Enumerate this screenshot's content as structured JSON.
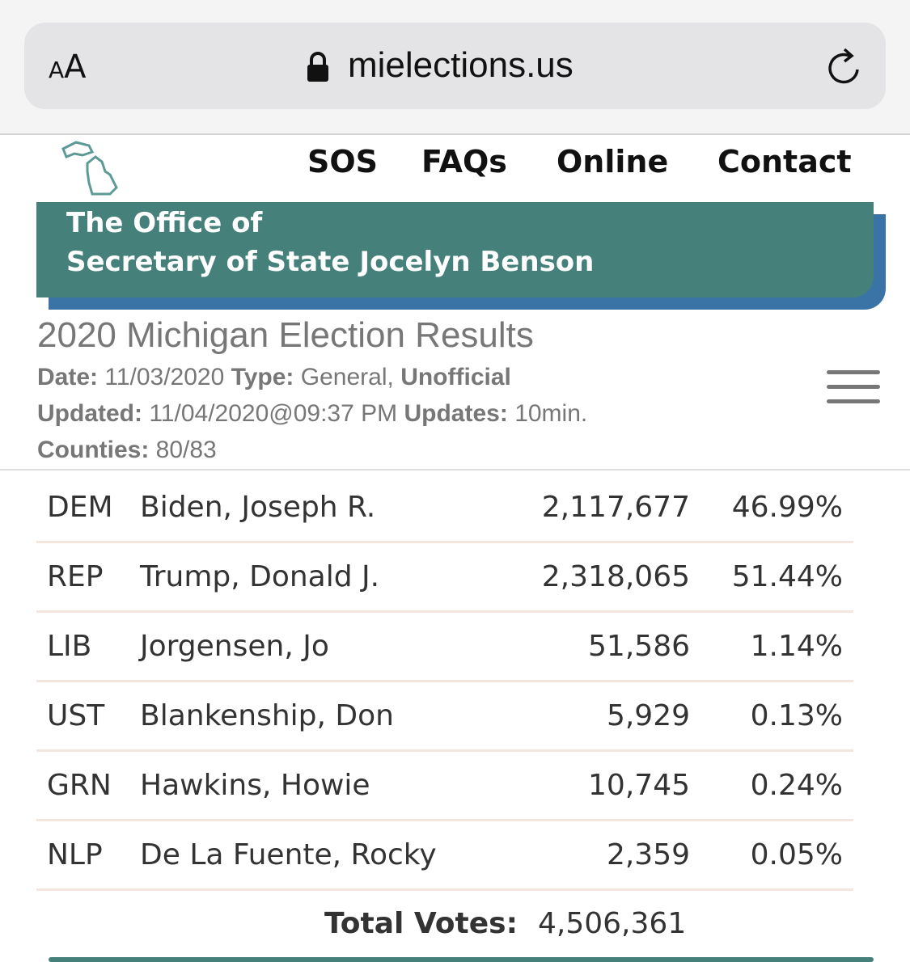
{
  "browser": {
    "text_size": "AA",
    "url": "mielections.us"
  },
  "nav": [
    "SOS",
    "FAQs",
    "Online",
    "Contact"
  ],
  "banner": {
    "line1": "The Office of",
    "line2": "Secretary of State Jocelyn Benson"
  },
  "title": "2020 Michigan Election Results",
  "meta": [
    [
      {
        "text": "Date:",
        "bold": true
      },
      {
        "text": "11/03/2020",
        "bold": false
      },
      {
        "text": "Type:",
        "bold": true
      },
      {
        "text": "General,",
        "bold": false
      },
      {
        "text": "Unofficial",
        "bold": true
      }
    ],
    [
      {
        "text": "Updated:",
        "bold": true
      },
      {
        "text": "11/04/2020@09:37 PM",
        "bold": false
      },
      {
        "text": "Updates:",
        "bold": true
      },
      {
        "text": "10min.",
        "bold": false
      }
    ],
    [
      {
        "text": "Counties:",
        "bold": true
      },
      {
        "text": "80/83",
        "bold": false
      }
    ]
  ],
  "table": {
    "rows": [
      [
        "DEM",
        "Biden, Joseph R.",
        "2,117,677",
        "46.99%"
      ],
      [
        "REP",
        "Trump, Donald J.",
        "2,318,065",
        "51.44%"
      ],
      [
        "LIB",
        "Jorgensen, Jo",
        "51,586",
        "1.14%"
      ],
      [
        "UST",
        "Blankenship, Don",
        "5,929",
        "0.13%"
      ],
      [
        "GRN",
        "Hawkins, Howie",
        "10,745",
        "0.24%"
      ],
      [
        "NLP",
        "De La Fuente, Rocky",
        "2,359",
        "0.05%"
      ]
    ]
  },
  "total": {
    "label": "Total Votes:",
    "value": "4,506,361"
  }
}
